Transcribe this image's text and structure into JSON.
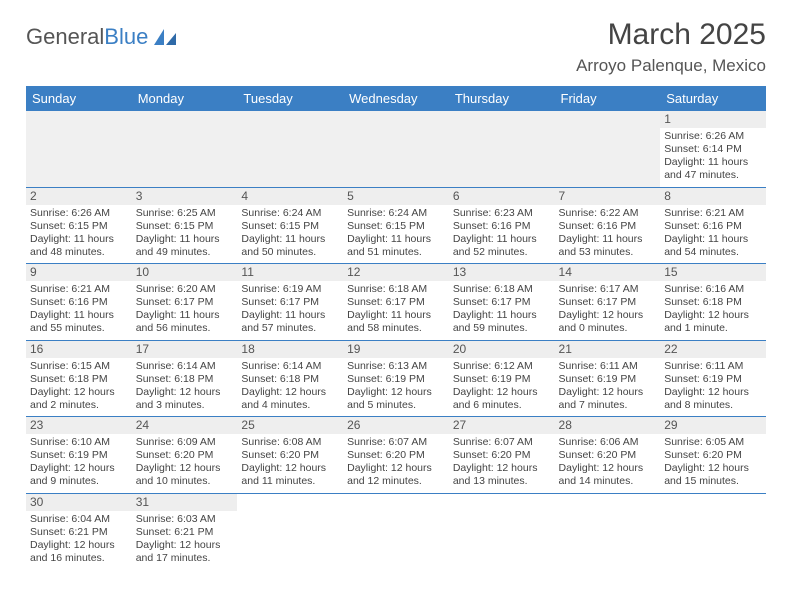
{
  "brand": {
    "text1": "General",
    "text2": "Blue",
    "logo_color": "#3b7fc4"
  },
  "header": {
    "title": "March 2025",
    "location": "Arroyo Palenque, Mexico"
  },
  "colors": {
    "header_bg": "#3b7fc4",
    "header_text": "#ffffff",
    "grid_line": "#3b7fc4",
    "empty_bg": "#f0f0f0",
    "daynum_bg": "#eeeeee",
    "text": "#444444"
  },
  "typography": {
    "title_fontsize": 30,
    "location_fontsize": 17,
    "dayheader_fontsize": 13,
    "cell_fontsize": 10.5
  },
  "days_of_week": [
    "Sunday",
    "Monday",
    "Tuesday",
    "Wednesday",
    "Thursday",
    "Friday",
    "Saturday"
  ],
  "weeks": [
    [
      null,
      null,
      null,
      null,
      null,
      null,
      {
        "n": "1",
        "sr": "Sunrise: 6:26 AM",
        "ss": "Sunset: 6:14 PM",
        "dl": "Daylight: 11 hours and 47 minutes."
      }
    ],
    [
      {
        "n": "2",
        "sr": "Sunrise: 6:26 AM",
        "ss": "Sunset: 6:15 PM",
        "dl": "Daylight: 11 hours and 48 minutes."
      },
      {
        "n": "3",
        "sr": "Sunrise: 6:25 AM",
        "ss": "Sunset: 6:15 PM",
        "dl": "Daylight: 11 hours and 49 minutes."
      },
      {
        "n": "4",
        "sr": "Sunrise: 6:24 AM",
        "ss": "Sunset: 6:15 PM",
        "dl": "Daylight: 11 hours and 50 minutes."
      },
      {
        "n": "5",
        "sr": "Sunrise: 6:24 AM",
        "ss": "Sunset: 6:15 PM",
        "dl": "Daylight: 11 hours and 51 minutes."
      },
      {
        "n": "6",
        "sr": "Sunrise: 6:23 AM",
        "ss": "Sunset: 6:16 PM",
        "dl": "Daylight: 11 hours and 52 minutes."
      },
      {
        "n": "7",
        "sr": "Sunrise: 6:22 AM",
        "ss": "Sunset: 6:16 PM",
        "dl": "Daylight: 11 hours and 53 minutes."
      },
      {
        "n": "8",
        "sr": "Sunrise: 6:21 AM",
        "ss": "Sunset: 6:16 PM",
        "dl": "Daylight: 11 hours and 54 minutes."
      }
    ],
    [
      {
        "n": "9",
        "sr": "Sunrise: 6:21 AM",
        "ss": "Sunset: 6:16 PM",
        "dl": "Daylight: 11 hours and 55 minutes."
      },
      {
        "n": "10",
        "sr": "Sunrise: 6:20 AM",
        "ss": "Sunset: 6:17 PM",
        "dl": "Daylight: 11 hours and 56 minutes."
      },
      {
        "n": "11",
        "sr": "Sunrise: 6:19 AM",
        "ss": "Sunset: 6:17 PM",
        "dl": "Daylight: 11 hours and 57 minutes."
      },
      {
        "n": "12",
        "sr": "Sunrise: 6:18 AM",
        "ss": "Sunset: 6:17 PM",
        "dl": "Daylight: 11 hours and 58 minutes."
      },
      {
        "n": "13",
        "sr": "Sunrise: 6:18 AM",
        "ss": "Sunset: 6:17 PM",
        "dl": "Daylight: 11 hours and 59 minutes."
      },
      {
        "n": "14",
        "sr": "Sunrise: 6:17 AM",
        "ss": "Sunset: 6:17 PM",
        "dl": "Daylight: 12 hours and 0 minutes."
      },
      {
        "n": "15",
        "sr": "Sunrise: 6:16 AM",
        "ss": "Sunset: 6:18 PM",
        "dl": "Daylight: 12 hours and 1 minute."
      }
    ],
    [
      {
        "n": "16",
        "sr": "Sunrise: 6:15 AM",
        "ss": "Sunset: 6:18 PM",
        "dl": "Daylight: 12 hours and 2 minutes."
      },
      {
        "n": "17",
        "sr": "Sunrise: 6:14 AM",
        "ss": "Sunset: 6:18 PM",
        "dl": "Daylight: 12 hours and 3 minutes."
      },
      {
        "n": "18",
        "sr": "Sunrise: 6:14 AM",
        "ss": "Sunset: 6:18 PM",
        "dl": "Daylight: 12 hours and 4 minutes."
      },
      {
        "n": "19",
        "sr": "Sunrise: 6:13 AM",
        "ss": "Sunset: 6:19 PM",
        "dl": "Daylight: 12 hours and 5 minutes."
      },
      {
        "n": "20",
        "sr": "Sunrise: 6:12 AM",
        "ss": "Sunset: 6:19 PM",
        "dl": "Daylight: 12 hours and 6 minutes."
      },
      {
        "n": "21",
        "sr": "Sunrise: 6:11 AM",
        "ss": "Sunset: 6:19 PM",
        "dl": "Daylight: 12 hours and 7 minutes."
      },
      {
        "n": "22",
        "sr": "Sunrise: 6:11 AM",
        "ss": "Sunset: 6:19 PM",
        "dl": "Daylight: 12 hours and 8 minutes."
      }
    ],
    [
      {
        "n": "23",
        "sr": "Sunrise: 6:10 AM",
        "ss": "Sunset: 6:19 PM",
        "dl": "Daylight: 12 hours and 9 minutes."
      },
      {
        "n": "24",
        "sr": "Sunrise: 6:09 AM",
        "ss": "Sunset: 6:20 PM",
        "dl": "Daylight: 12 hours and 10 minutes."
      },
      {
        "n": "25",
        "sr": "Sunrise: 6:08 AM",
        "ss": "Sunset: 6:20 PM",
        "dl": "Daylight: 12 hours and 11 minutes."
      },
      {
        "n": "26",
        "sr": "Sunrise: 6:07 AM",
        "ss": "Sunset: 6:20 PM",
        "dl": "Daylight: 12 hours and 12 minutes."
      },
      {
        "n": "27",
        "sr": "Sunrise: 6:07 AM",
        "ss": "Sunset: 6:20 PM",
        "dl": "Daylight: 12 hours and 13 minutes."
      },
      {
        "n": "28",
        "sr": "Sunrise: 6:06 AM",
        "ss": "Sunset: 6:20 PM",
        "dl": "Daylight: 12 hours and 14 minutes."
      },
      {
        "n": "29",
        "sr": "Sunrise: 6:05 AM",
        "ss": "Sunset: 6:20 PM",
        "dl": "Daylight: 12 hours and 15 minutes."
      }
    ],
    [
      {
        "n": "30",
        "sr": "Sunrise: 6:04 AM",
        "ss": "Sunset: 6:21 PM",
        "dl": "Daylight: 12 hours and 16 minutes."
      },
      {
        "n": "31",
        "sr": "Sunrise: 6:03 AM",
        "ss": "Sunset: 6:21 PM",
        "dl": "Daylight: 12 hours and 17 minutes."
      },
      null,
      null,
      null,
      null,
      null
    ]
  ]
}
